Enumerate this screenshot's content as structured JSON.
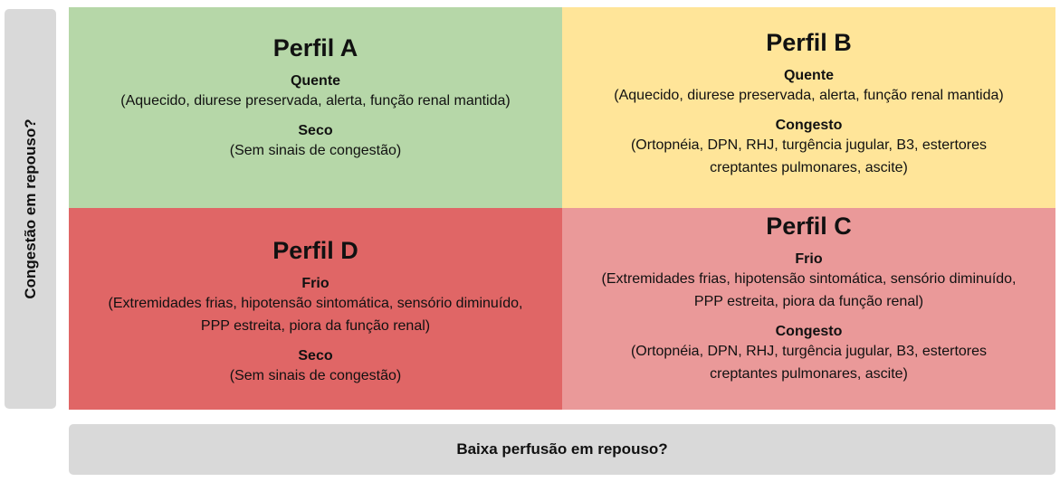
{
  "axes": {
    "y_label": "Congestão em repouso?",
    "x_label": "Baixa perfusão em repouso?"
  },
  "colors": {
    "perfil_a": "#b6d7a8",
    "perfil_b": "#ffe599",
    "perfil_c": "#ea9999",
    "perfil_d": "#e06666",
    "axis_box": "#d9d9d9"
  },
  "profiles": {
    "a": {
      "title": "Perfil A",
      "k1": "Quente",
      "d1": "(Aquecido, diurese preservada, alerta, função renal mantida)",
      "k2": "Seco",
      "d2": "(Sem sinais de congestão)"
    },
    "b": {
      "title": "Perfil B",
      "k1": "Quente",
      "d1": "(Aquecido, diurese preservada, alerta, função renal mantida)",
      "k2": "Congesto",
      "d2": "(Ortopnéia, DPN, RHJ, turgência jugular, B3, estertores creptantes pulmonares, ascite)"
    },
    "d": {
      "title": "Perfil D",
      "k1": "Frio",
      "d1": "(Extremidades frias, hipotensão sintomática, sensório diminuído, PPP estreita, piora da função renal)",
      "k2": "Seco",
      "d2": "(Sem sinais de congestão)"
    },
    "c": {
      "title": "Perfil C",
      "k1": "Frio",
      "d1": "(Extremidades frias, hipotensão sintomática, sensório diminuído, PPP estreita, piora da função renal)",
      "k2": "Congesto",
      "d2": "(Ortopnéia, DPN, RHJ, turgência jugular, B3, estertores creptantes pulmonares, ascite)"
    }
  }
}
